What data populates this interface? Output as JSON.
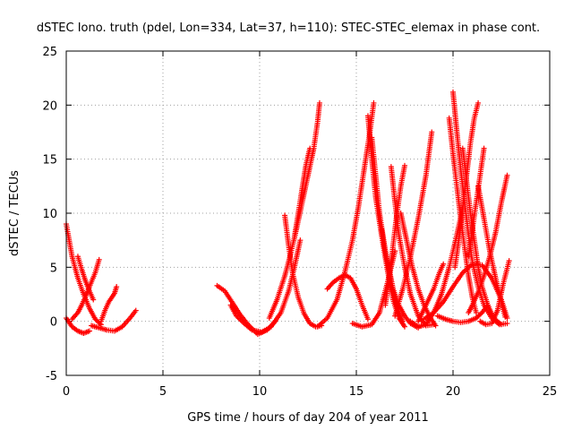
{
  "chart_data": {
    "type": "scatter",
    "title": "dSTEC Iono. truth (pdel, Lon=334, Lat=37, h=110): STEC-STEC_elemax in phase cont.",
    "xlabel": "GPS time / hours of day 204 of year 2011",
    "ylabel": "dSTEC  / TECUs",
    "xlim": [
      0,
      25
    ],
    "ylim": [
      -5,
      25
    ],
    "xticks": [
      "0",
      "5",
      "10",
      "15",
      "20",
      "25"
    ],
    "yticks": [
      "-5",
      "0",
      "5",
      "10",
      "15",
      "20",
      "25"
    ],
    "grid": true,
    "marker": "+",
    "color": "#ff0000",
    "series": [
      {
        "x": [
          0.0,
          0.3,
          0.6,
          0.9,
          1.2,
          1.5,
          1.8
        ],
        "y": [
          9.0,
          6.0,
          4.0,
          2.5,
          1.2,
          0.2,
          -0.3
        ]
      },
      {
        "x": [
          0.0,
          0.3,
          0.6,
          0.9,
          1.2
        ],
        "y": [
          0.3,
          -0.5,
          -0.9,
          -1.1,
          -0.9
        ]
      },
      {
        "x": [
          0.3,
          0.6,
          0.8,
          1.0,
          1.2,
          1.5,
          1.7
        ],
        "y": [
          0.2,
          0.8,
          1.5,
          2.3,
          3.2,
          4.5,
          5.7
        ]
      },
      {
        "x": [
          0.6,
          0.8,
          1.0,
          1.2,
          1.4
        ],
        "y": [
          6.0,
          4.8,
          3.7,
          2.8,
          2.0
        ]
      },
      {
        "x": [
          1.3,
          1.7,
          2.1,
          2.5,
          2.9,
          3.3,
          3.6
        ],
        "y": [
          -0.4,
          -0.6,
          -0.8,
          -0.9,
          -0.5,
          0.3,
          1.0
        ]
      },
      {
        "x": [
          1.8,
          2.0,
          2.2,
          2.5,
          2.6
        ],
        "y": [
          0.0,
          1.0,
          1.8,
          2.6,
          3.2
        ]
      },
      {
        "x": [
          7.8,
          8.2,
          8.6,
          9.0,
          9.4,
          9.9,
          10.4,
          10.8
        ],
        "y": [
          3.3,
          2.8,
          1.7,
          0.6,
          -0.3,
          -1.2,
          -0.8,
          0.0
        ]
      },
      {
        "x": [
          8.5,
          8.8,
          9.2,
          9.6,
          10.1,
          10.6,
          11.1,
          11.5,
          11.8,
          12.1
        ],
        "y": [
          1.5,
          0.5,
          -0.2,
          -0.8,
          -1.0,
          -0.5,
          0.8,
          2.8,
          5.0,
          7.5
        ]
      },
      {
        "x": [
          10.5,
          10.9,
          11.3,
          11.6,
          11.9,
          12.2,
          12.5,
          12.8,
          13.0,
          13.1
        ],
        "y": [
          0.3,
          2.0,
          4.2,
          6.2,
          8.5,
          11.0,
          13.5,
          16.0,
          18.5,
          20.2
        ]
      },
      {
        "x": [
          11.3,
          11.5,
          11.7,
          12.0,
          12.3,
          12.6,
          12.9,
          13.2
        ],
        "y": [
          9.8,
          7.0,
          4.5,
          2.2,
          0.7,
          -0.2,
          -0.5,
          -0.4
        ]
      },
      {
        "x": [
          11.8,
          12.0,
          12.2,
          12.4,
          12.6
        ],
        "y": [
          7.8,
          10.0,
          12.3,
          14.5,
          16.0
        ]
      },
      {
        "x": [
          13.5,
          13.8,
          14.1,
          14.4,
          14.7,
          15.0,
          15.3,
          15.6
        ],
        "y": [
          3.0,
          3.6,
          4.0,
          4.3,
          4.0,
          3.0,
          1.5,
          0.2
        ]
      },
      {
        "x": [
          13.0,
          13.5,
          14.0,
          14.4,
          14.8,
          15.1,
          15.4,
          15.7,
          15.9
        ],
        "y": [
          -0.5,
          0.3,
          2.0,
          4.5,
          7.5,
          10.5,
          14.0,
          17.5,
          20.2
        ]
      },
      {
        "x": [
          14.8,
          15.3,
          15.8,
          16.2,
          16.6,
          17.0
        ],
        "y": [
          -0.2,
          -0.5,
          -0.3,
          0.8,
          3.5,
          6.5
        ]
      },
      {
        "x": [
          15.6,
          15.8,
          16.0,
          16.3,
          16.6,
          16.9,
          17.2,
          17.5
        ],
        "y": [
          19.0,
          15.0,
          11.5,
          8.0,
          4.8,
          2.0,
          0.3,
          -0.5
        ]
      },
      {
        "x": [
          15.8,
          16.0,
          16.2,
          16.5,
          16.8,
          17.1,
          17.4
        ],
        "y": [
          17.0,
          13.5,
          10.0,
          6.5,
          3.5,
          1.2,
          0.0
        ]
      },
      {
        "x": [
          16.3,
          16.5,
          16.7,
          16.9,
          17.2,
          17.5,
          17.8,
          18.2
        ],
        "y": [
          8.5,
          6.5,
          4.8,
          3.0,
          1.5,
          0.5,
          -0.2,
          -0.6
        ]
      },
      {
        "x": [
          16.5,
          16.7,
          16.9,
          17.1,
          17.3,
          17.5
        ],
        "y": [
          1.5,
          4.0,
          7.0,
          10.0,
          12.5,
          14.4
        ]
      },
      {
        "x": [
          16.8,
          17.0,
          17.2,
          17.5,
          17.8,
          18.2,
          18.6,
          19.0
        ],
        "y": [
          14.3,
          11.0,
          8.0,
          5.0,
          2.5,
          0.5,
          -0.4,
          -0.3
        ]
      },
      {
        "x": [
          17.0,
          17.4,
          17.8,
          18.2,
          18.6,
          18.9
        ],
        "y": [
          0.5,
          3.0,
          6.0,
          9.5,
          13.5,
          17.5
        ]
      },
      {
        "x": [
          17.3,
          17.6,
          17.9,
          18.2,
          18.5,
          18.8,
          19.1
        ],
        "y": [
          10.0,
          7.5,
          5.0,
          3.0,
          1.5,
          0.4,
          -0.4
        ]
      },
      {
        "x": [
          17.8,
          18.2,
          18.6,
          19.0,
          19.4,
          19.8,
          20.2,
          20.5
        ],
        "y": [
          0.0,
          -0.5,
          -0.3,
          0.8,
          2.5,
          5.0,
          8.0,
          10.5
        ]
      },
      {
        "x": [
          18.2,
          18.6,
          19.0,
          19.3,
          19.5
        ],
        "y": [
          0.0,
          1.5,
          3.0,
          4.5,
          5.3
        ]
      },
      {
        "x": [
          18.5,
          19.0,
          19.5,
          20.0,
          20.5,
          21.0,
          21.5,
          22.0,
          22.5,
          22.8
        ],
        "y": [
          0.2,
          0.8,
          1.8,
          3.2,
          4.5,
          5.3,
          5.2,
          4.0,
          2.0,
          0.3
        ]
      },
      {
        "x": [
          19.8,
          20.0,
          20.2,
          20.4,
          20.6,
          20.8,
          21.0,
          21.2
        ],
        "y": [
          18.8,
          15.5,
          12.5,
          9.5,
          6.8,
          4.2,
          2.2,
          0.8
        ]
      },
      {
        "x": [
          20.0,
          20.2,
          20.4,
          20.6,
          20.8,
          21.0,
          21.3,
          21.6,
          22.0,
          22.4,
          22.8
        ],
        "y": [
          21.2,
          17.5,
          14.0,
          11.0,
          8.0,
          5.5,
          3.2,
          1.5,
          0.3,
          -0.3,
          -0.2
        ]
      },
      {
        "x": [
          19.2,
          19.6,
          20.0,
          20.4,
          20.8,
          21.2,
          21.5,
          21.8
        ],
        "y": [
          0.5,
          0.2,
          0.0,
          -0.1,
          0.0,
          0.3,
          0.8,
          1.5
        ]
      },
      {
        "x": [
          20.1,
          20.3,
          20.5,
          20.7,
          20.9,
          21.1,
          21.3
        ],
        "y": [
          5.0,
          7.5,
          10.5,
          13.5,
          16.5,
          18.8,
          20.2
        ]
      },
      {
        "x": [
          20.5,
          20.7,
          20.9,
          21.1,
          21.3,
          21.5,
          21.8,
          22.1,
          22.5
        ],
        "y": [
          16.0,
          13.0,
          10.0,
          7.5,
          5.0,
          3.2,
          1.5,
          0.3,
          -0.3
        ]
      },
      {
        "x": [
          20.8,
          21.0,
          21.2,
          21.4,
          21.6
        ],
        "y": [
          6.0,
          8.5,
          11.0,
          13.5,
          16.0
        ]
      },
      {
        "x": [
          20.8,
          21.0,
          21.3,
          21.6,
          21.9,
          22.2,
          22.5,
          22.8
        ],
        "y": [
          0.8,
          1.5,
          2.7,
          4.2,
          6.0,
          8.2,
          11.0,
          13.5
        ]
      },
      {
        "x": [
          21.4,
          21.7,
          22.0,
          22.3,
          22.6,
          22.9
        ],
        "y": [
          0.0,
          -0.3,
          -0.2,
          1.0,
          3.5,
          5.6
        ]
      },
      {
        "x": [
          21.3,
          21.6,
          21.9,
          22.2,
          22.5,
          22.7
        ],
        "y": [
          12.5,
          9.5,
          6.5,
          4.0,
          1.8,
          0.4
        ]
      }
    ]
  }
}
